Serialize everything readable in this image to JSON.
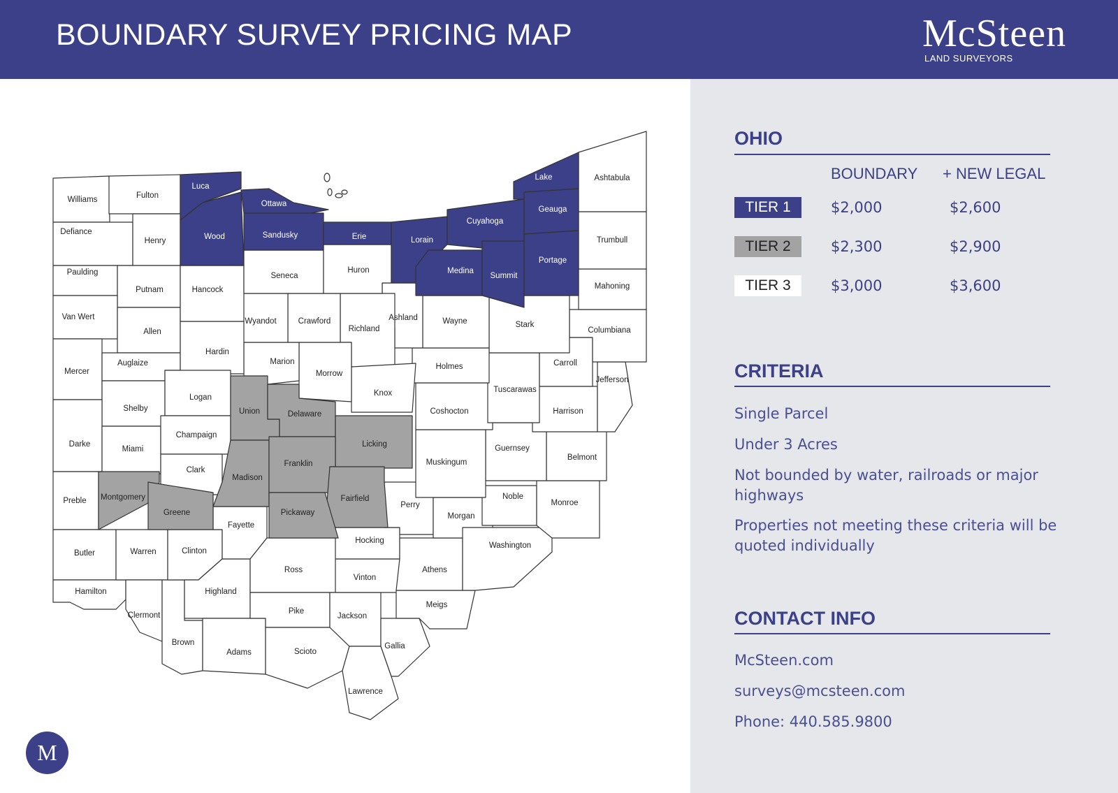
{
  "header": {
    "title": "BOUNDARY SURVEY PRICING MAP"
  },
  "logo": {
    "name": "McSteen",
    "subtitle": "LAND SURVEYORS",
    "badge_letter": "M"
  },
  "colors": {
    "tier1": "#3b4088",
    "tier2": "#a3a3a3",
    "tier3": "#ffffff",
    "header_bg": "#3b4088",
    "panel_bg": "#e6e7ea"
  },
  "pricing": {
    "state": "OHIO",
    "columns": {
      "boundary": "BOUNDARY",
      "new_legal": "+ NEW LEGAL"
    },
    "tiers": [
      {
        "label": "TIER 1",
        "boundary": "$2,000",
        "new_legal": "$2,600"
      },
      {
        "label": "TIER 2",
        "boundary": "$2,300",
        "new_legal": "$2,900"
      },
      {
        "label": "TIER 3",
        "boundary": "$3,000",
        "new_legal": "$3,600"
      }
    ]
  },
  "criteria": {
    "heading": "CRITERIA",
    "items": [
      "Single Parcel",
      "Under 3 Acres",
      "Not bounded by water, railroads or major highways",
      "Properties not meeting these criteria will be quoted individually"
    ]
  },
  "contact": {
    "heading": "CONTACT INFO",
    "website": "McSteen.com",
    "email": "surveys@mcsteen.com",
    "phone": "Phone: 440.585.9800"
  },
  "map": {
    "counties": [
      {
        "name": "Williams",
        "tier": 3
      },
      {
        "name": "Fulton",
        "tier": 3
      },
      {
        "name": "Defiance",
        "tier": 3
      },
      {
        "name": "Henry",
        "tier": 3
      },
      {
        "name": "Paulding",
        "tier": 3
      },
      {
        "name": "Putnam",
        "tier": 3
      },
      {
        "name": "Van Wert",
        "tier": 3
      },
      {
        "name": "Allen",
        "tier": 3
      },
      {
        "name": "Mercer",
        "tier": 3
      },
      {
        "name": "Auglaize",
        "tier": 3
      },
      {
        "name": "Shelby",
        "tier": 3
      },
      {
        "name": "Darke",
        "tier": 3
      },
      {
        "name": "Miami",
        "tier": 3
      },
      {
        "name": "Preble",
        "tier": 3
      },
      {
        "name": "Butler",
        "tier": 3
      },
      {
        "name": "Hamilton",
        "tier": 3
      },
      {
        "name": "Warren",
        "tier": 3
      },
      {
        "name": "Clermont",
        "tier": 3
      },
      {
        "name": "Brown",
        "tier": 3
      },
      {
        "name": "Clinton",
        "tier": 3
      },
      {
        "name": "Highland",
        "tier": 3
      },
      {
        "name": "Adams",
        "tier": 3
      },
      {
        "name": "Fayette",
        "tier": 3
      },
      {
        "name": "Ross",
        "tier": 3
      },
      {
        "name": "Pike",
        "tier": 3
      },
      {
        "name": "Scioto",
        "tier": 3
      },
      {
        "name": "Jackson",
        "tier": 3
      },
      {
        "name": "Vinton",
        "tier": 3
      },
      {
        "name": "Hocking",
        "tier": 3
      },
      {
        "name": "Lawrence",
        "tier": 3
      },
      {
        "name": "Gallia",
        "tier": 3
      },
      {
        "name": "Meigs",
        "tier": 3
      },
      {
        "name": "Athens",
        "tier": 3
      },
      {
        "name": "Perry",
        "tier": 3
      },
      {
        "name": "Morgan",
        "tier": 3
      },
      {
        "name": "Washington",
        "tier": 3
      },
      {
        "name": "Noble",
        "tier": 3
      },
      {
        "name": "Monroe",
        "tier": 3
      },
      {
        "name": "Belmont",
        "tier": 3
      },
      {
        "name": "Guernsey",
        "tier": 3
      },
      {
        "name": "Muskingum",
        "tier": 3
      },
      {
        "name": "Coshocton",
        "tier": 3
      },
      {
        "name": "Harrison",
        "tier": 3
      },
      {
        "name": "Jefferson",
        "tier": 3
      },
      {
        "name": "Tuscarawas",
        "tier": 3
      },
      {
        "name": "Carroll",
        "tier": 3
      },
      {
        "name": "Columbiana",
        "tier": 3
      },
      {
        "name": "Stark",
        "tier": 3
      },
      {
        "name": "Mahoning",
        "tier": 3
      },
      {
        "name": "Trumbull",
        "tier": 3
      },
      {
        "name": "Ashtabula",
        "tier": 3
      },
      {
        "name": "Holmes",
        "tier": 3
      },
      {
        "name": "Wayne",
        "tier": 3
      },
      {
        "name": "Ashland",
        "tier": 3
      },
      {
        "name": "Richland",
        "tier": 3
      },
      {
        "name": "Knox",
        "tier": 3
      },
      {
        "name": "Morrow",
        "tier": 3
      },
      {
        "name": "Marion",
        "tier": 3
      },
      {
        "name": "Crawford",
        "tier": 3
      },
      {
        "name": "Wyandot",
        "tier": 3
      },
      {
        "name": "Hardin",
        "tier": 3
      },
      {
        "name": "Hancock",
        "tier": 3
      },
      {
        "name": "Seneca",
        "tier": 3
      },
      {
        "name": "Huron",
        "tier": 3
      },
      {
        "name": "Logan",
        "tier": 3
      },
      {
        "name": "Champaign",
        "tier": 3
      },
      {
        "name": "Clark",
        "tier": 3
      },
      {
        "name": "Union",
        "tier": 2
      },
      {
        "name": "Delaware",
        "tier": 2
      },
      {
        "name": "Licking",
        "tier": 2
      },
      {
        "name": "Madison",
        "tier": 2
      },
      {
        "name": "Franklin",
        "tier": 2
      },
      {
        "name": "Fairfield",
        "tier": 2
      },
      {
        "name": "Pickaway",
        "tier": 2
      },
      {
        "name": "Montgomery",
        "tier": 2
      },
      {
        "name": "Greene",
        "tier": 2
      },
      {
        "name": "Luca",
        "tier": 1
      },
      {
        "name": "Wood",
        "tier": 1
      },
      {
        "name": "Ottawa",
        "tier": 1
      },
      {
        "name": "Sandusky",
        "tier": 1
      },
      {
        "name": "Erie",
        "tier": 1
      },
      {
        "name": "Lorain",
        "tier": 1
      },
      {
        "name": "Medina",
        "tier": 1
      },
      {
        "name": "Cuyahoga",
        "tier": 1
      },
      {
        "name": "Summit",
        "tier": 1
      },
      {
        "name": "Lake",
        "tier": 1
      },
      {
        "name": "Geauga",
        "tier": 1
      },
      {
        "name": "Portage",
        "tier": 1
      }
    ]
  }
}
